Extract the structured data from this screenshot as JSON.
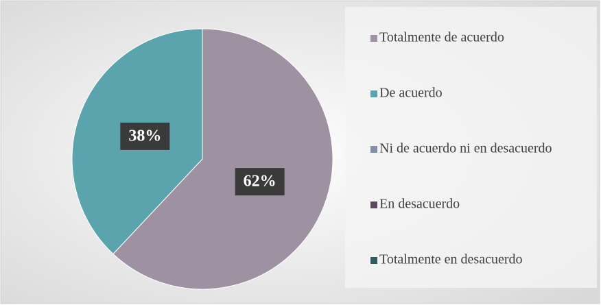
{
  "chart_data": {
    "type": "pie",
    "categories": [
      "Totalmente de acuerdo",
      "De acuerdo",
      "Ni de acuerdo ni en desacuerdo",
      "En desacuerdo",
      "Totalmente en desacuerdo"
    ],
    "values": [
      62,
      38,
      0,
      0,
      0
    ],
    "value_labels": [
      "62%",
      "38%",
      null,
      null,
      null
    ],
    "colors": [
      "#9e91a1",
      "#5ba4ae",
      "#8190a8",
      "#5b4a5c",
      "#2f5d61"
    ],
    "legend": "right"
  }
}
